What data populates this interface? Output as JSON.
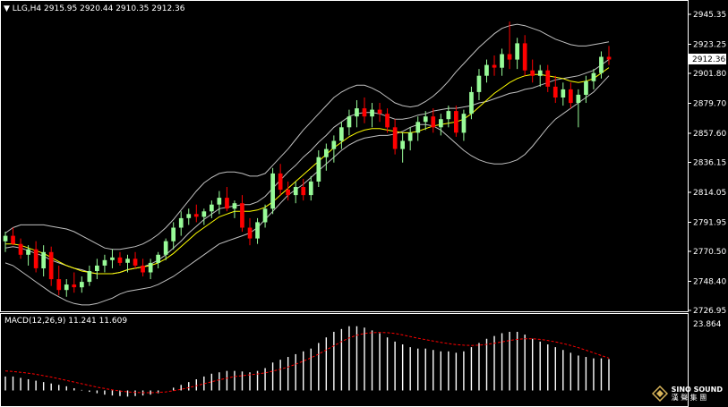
{
  "chart_header": {
    "symbol": "LLG,H4",
    "ohlc": "2915.95 2920.44 2910.35 2912.36"
  },
  "macd_header": {
    "label": "MACD(12,26,9) 11.241 11.609"
  },
  "current_price": "2912.36",
  "watermark": {
    "name": "SINO SOUND",
    "sub": "漢 聲 集 團"
  },
  "colors": {
    "background": "#000000",
    "bull": "#98FB98",
    "bear": "#FF0000",
    "ma": "#FFFF00",
    "bands": "#C0C0C0",
    "macd_signal": "#FF0000",
    "macd_hist": "#FFFFFF",
    "frame": "#FFFFFF"
  },
  "chart_data": [
    {
      "type": "candlestick",
      "title": "LLG,H4",
      "ylim": [
        2726.95,
        2945.35
      ],
      "y_ticks": [
        "2945.35",
        "2923.25",
        "2901.80",
        "2879.70",
        "2857.60",
        "2836.15",
        "2814.05",
        "2791.95",
        "2770.50",
        "2748.40",
        "2726.95"
      ],
      "candles": [
        [
          2778,
          2785,
          2770,
          2782
        ],
        [
          2782,
          2788,
          2775,
          2776
        ],
        [
          2776,
          2780,
          2765,
          2768
        ],
        [
          2768,
          2775,
          2760,
          2772
        ],
        [
          2772,
          2778,
          2755,
          2758
        ],
        [
          2758,
          2775,
          2752,
          2770
        ],
        [
          2770,
          2774,
          2745,
          2750
        ],
        [
          2750,
          2760,
          2738,
          2742
        ],
        [
          2742,
          2750,
          2737,
          2746
        ],
        [
          2746,
          2755,
          2740,
          2744
        ],
        [
          2744,
          2752,
          2740,
          2748
        ],
        [
          2748,
          2760,
          2745,
          2756
        ],
        [
          2756,
          2765,
          2750,
          2760
        ],
        [
          2760,
          2768,
          2755,
          2764
        ],
        [
          2764,
          2772,
          2758,
          2766
        ],
        [
          2766,
          2770,
          2760,
          2762
        ],
        [
          2762,
          2768,
          2755,
          2765
        ],
        [
          2765,
          2770,
          2758,
          2760
        ],
        [
          2760,
          2765,
          2752,
          2755
        ],
        [
          2755,
          2765,
          2750,
          2762
        ],
        [
          2762,
          2770,
          2758,
          2768
        ],
        [
          2768,
          2780,
          2764,
          2778
        ],
        [
          2778,
          2792,
          2772,
          2788
        ],
        [
          2788,
          2800,
          2782,
          2795
        ],
        [
          2795,
          2802,
          2790,
          2798
        ],
        [
          2798,
          2805,
          2792,
          2796
        ],
        [
          2796,
          2802,
          2790,
          2800
        ],
        [
          2800,
          2808,
          2795,
          2805
        ],
        [
          2805,
          2815,
          2798,
          2810
        ],
        [
          2810,
          2818,
          2800,
          2802
        ],
        [
          2802,
          2808,
          2795,
          2806
        ],
        [
          2806,
          2812,
          2785,
          2788
        ],
        [
          2788,
          2795,
          2775,
          2780
        ],
        [
          2780,
          2795,
          2776,
          2792
        ],
        [
          2792,
          2805,
          2788,
          2802
        ],
        [
          2802,
          2832,
          2798,
          2828
        ],
        [
          2828,
          2835,
          2812,
          2816
        ],
        [
          2816,
          2822,
          2808,
          2812
        ],
        [
          2812,
          2822,
          2806,
          2818
        ],
        [
          2818,
          2824,
          2808,
          2812
        ],
        [
          2812,
          2826,
          2808,
          2822
        ],
        [
          2822,
          2845,
          2818,
          2840
        ],
        [
          2840,
          2850,
          2830,
          2846
        ],
        [
          2846,
          2856,
          2836,
          2852
        ],
        [
          2852,
          2866,
          2846,
          2862
        ],
        [
          2862,
          2875,
          2856,
          2870
        ],
        [
          2870,
          2882,
          2862,
          2876
        ],
        [
          2876,
          2884,
          2865,
          2870
        ],
        [
          2870,
          2880,
          2862,
          2875
        ],
        [
          2875,
          2880,
          2866,
          2872
        ],
        [
          2872,
          2876,
          2858,
          2862
        ],
        [
          2862,
          2868,
          2842,
          2846
        ],
        [
          2846,
          2858,
          2836,
          2852
        ],
        [
          2852,
          2862,
          2845,
          2858
        ],
        [
          2858,
          2870,
          2852,
          2866
        ],
        [
          2866,
          2874,
          2860,
          2870
        ],
        [
          2870,
          2876,
          2858,
          2862
        ],
        [
          2862,
          2872,
          2856,
          2868
        ],
        [
          2868,
          2878,
          2862,
          2874
        ],
        [
          2874,
          2878,
          2855,
          2858
        ],
        [
          2858,
          2875,
          2852,
          2872
        ],
        [
          2872,
          2892,
          2868,
          2888
        ],
        [
          2888,
          2905,
          2882,
          2900
        ],
        [
          2900,
          2912,
          2895,
          2908
        ],
        [
          2908,
          2915,
          2900,
          2906
        ],
        [
          2906,
          2920,
          2900,
          2916
        ],
        [
          2916,
          2940,
          2905,
          2912
        ],
        [
          2912,
          2928,
          2905,
          2924
        ],
        [
          2924,
          2930,
          2900,
          2904
        ],
        [
          2904,
          2912,
          2895,
          2900
        ],
        [
          2900,
          2908,
          2892,
          2904
        ],
        [
          2904,
          2908,
          2888,
          2892
        ],
        [
          2892,
          2900,
          2880,
          2884
        ],
        [
          2884,
          2895,
          2878,
          2890
        ],
        [
          2890,
          2895,
          2876,
          2880
        ],
        [
          2880,
          2890,
          2862,
          2886
        ],
        [
          2886,
          2900,
          2880,
          2896
        ],
        [
          2896,
          2905,
          2890,
          2902
        ],
        [
          2902,
          2918,
          2898,
          2914
        ],
        [
          2914,
          2922,
          2908,
          2912
        ]
      ],
      "bollinger": {
        "upper": [
          2784,
          2788,
          2790,
          2790,
          2790,
          2790,
          2789,
          2788,
          2787,
          2785,
          2782,
          2779,
          2776,
          2773,
          2772,
          2772,
          2773,
          2774,
          2776,
          2779,
          2783,
          2788,
          2794,
          2801,
          2808,
          2815,
          2821,
          2825,
          2828,
          2829,
          2829,
          2828,
          2826,
          2826,
          2828,
          2834,
          2840,
          2846,
          2853,
          2860,
          2866,
          2872,
          2878,
          2884,
          2888,
          2891,
          2893,
          2893,
          2891,
          2888,
          2884,
          2880,
          2878,
          2877,
          2878,
          2881,
          2885,
          2890,
          2896,
          2903,
          2909,
          2915,
          2921,
          2926,
          2931,
          2935,
          2937,
          2938,
          2937,
          2935,
          2933,
          2930,
          2927,
          2925,
          2923,
          2922,
          2922,
          2923,
          2924,
          2925
        ],
        "lower": [
          2762,
          2760,
          2756,
          2752,
          2748,
          2744,
          2740,
          2737,
          2734,
          2732,
          2731,
          2731,
          2732,
          2734,
          2736,
          2739,
          2741,
          2742,
          2743,
          2744,
          2746,
          2749,
          2752,
          2756,
          2760,
          2764,
          2768,
          2772,
          2776,
          2778,
          2780,
          2782,
          2784,
          2788,
          2794,
          2800,
          2806,
          2812,
          2816,
          2820,
          2825,
          2830,
          2835,
          2840,
          2845,
          2849,
          2852,
          2854,
          2855,
          2856,
          2856,
          2857,
          2859,
          2862,
          2864,
          2864,
          2863,
          2860,
          2855,
          2850,
          2845,
          2841,
          2838,
          2836,
          2835,
          2835,
          2836,
          2838,
          2842,
          2848,
          2855,
          2862,
          2868,
          2872,
          2876,
          2880,
          2884,
          2888,
          2894,
          2900
        ],
        "middle": [
          2773,
          2774,
          2773,
          2771,
          2769,
          2767,
          2764,
          2762,
          2760,
          2758,
          2757,
          2755,
          2754,
          2754,
          2754,
          2755,
          2757,
          2758,
          2759,
          2761,
          2764,
          2768,
          2773,
          2778,
          2784,
          2789,
          2794,
          2798,
          2802,
          2803,
          2804,
          2805,
          2805,
          2807,
          2811,
          2817,
          2823,
          2829,
          2834,
          2840,
          2845,
          2851,
          2856,
          2862,
          2866,
          2870,
          2872,
          2873,
          2873,
          2872,
          2870,
          2868,
          2868,
          2869,
          2871,
          2872,
          2874,
          2875,
          2876,
          2876,
          2877,
          2878,
          2880,
          2881,
          2883,
          2885,
          2887,
          2888,
          2890,
          2891,
          2893,
          2895,
          2897,
          2898,
          2899,
          2900,
          2902,
          2904,
          2908,
          2912
        ]
      },
      "ma": [
        2776,
        2776,
        2775,
        2773,
        2771,
        2769,
        2766,
        2763,
        2760,
        2758,
        2756,
        2755,
        2754,
        2754,
        2754,
        2755,
        2757,
        2758,
        2759,
        2760,
        2762,
        2765,
        2769,
        2774,
        2779,
        2784,
        2788,
        2792,
        2796,
        2798,
        2800,
        2800,
        2800,
        2801,
        2803,
        2807,
        2812,
        2817,
        2822,
        2827,
        2832,
        2837,
        2842,
        2847,
        2851,
        2855,
        2858,
        2860,
        2861,
        2861,
        2860,
        2859,
        2858,
        2858,
        2859,
        2861,
        2863,
        2864,
        2865,
        2866,
        2868,
        2872,
        2877,
        2882,
        2887,
        2891,
        2895,
        2898,
        2900,
        2901,
        2901,
        2900,
        2899,
        2898,
        2896,
        2895,
        2896,
        2898,
        2902,
        2906
      ]
    },
    {
      "type": "bar",
      "title": "MACD(12,26,9)",
      "ylim": [
        -4,
        23.864
      ],
      "y_ticks": [
        "23.864"
      ],
      "values": [
        5,
        5,
        4.5,
        4,
        3.5,
        3,
        2.5,
        2,
        1.5,
        0.8,
        0.2,
        -0.5,
        -1,
        -1.5,
        -1.8,
        -2,
        -2.2,
        -2,
        -1.8,
        -1.5,
        -1,
        0,
        1,
        2,
        3,
        4,
        5,
        6,
        6.5,
        7,
        7,
        6.8,
        6.5,
        7,
        8,
        10,
        11,
        12,
        13,
        14,
        15,
        17,
        19,
        21,
        22,
        23,
        23,
        22.5,
        21.5,
        20.5,
        19,
        17.5,
        16.5,
        15.5,
        15,
        15,
        14.5,
        14,
        14,
        13.5,
        14,
        15.5,
        17,
        18.5,
        19.5,
        20.5,
        21,
        21,
        20,
        18.5,
        17.5,
        16.5,
        15.5,
        14.5,
        13.5,
        12.5,
        12,
        11.5,
        11.5,
        11.241
      ],
      "signal": [
        7,
        6.8,
        6.5,
        6.2,
        5.8,
        5.3,
        4.8,
        4.2,
        3.6,
        3,
        2.4,
        1.8,
        1.2,
        0.7,
        0.2,
        -0.2,
        -0.5,
        -0.7,
        -0.8,
        -0.8,
        -0.7,
        -0.5,
        -0.1,
        0.4,
        1,
        1.7,
        2.4,
        3.1,
        3.8,
        4.4,
        5,
        5.3,
        5.6,
        5.9,
        6.3,
        6.9,
        7.6,
        8.4,
        9.4,
        10.5,
        11.7,
        13,
        14.5,
        16,
        17.5,
        18.8,
        19.8,
        20.4,
        20.7,
        20.8,
        20.7,
        20.4,
        19.9,
        19.3,
        18.7,
        18.2,
        17.7,
        17.2,
        16.8,
        16.4,
        16.2,
        16.1,
        16.2,
        16.5,
        16.9,
        17.4,
        17.9,
        18.3,
        18.5,
        18.5,
        18.3,
        17.9,
        17.4,
        16.8,
        16.1,
        15.3,
        14.4,
        13.5,
        12.5,
        11.609
      ]
    }
  ]
}
